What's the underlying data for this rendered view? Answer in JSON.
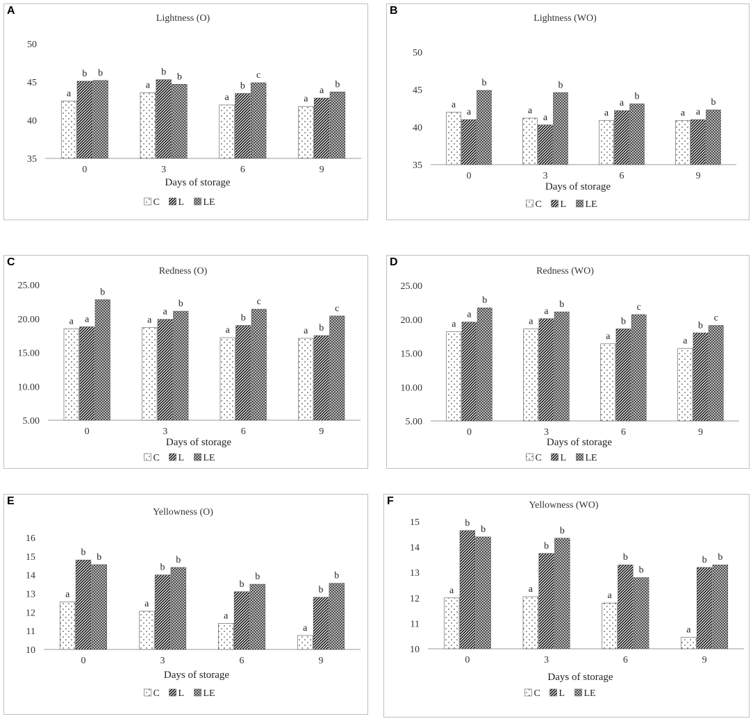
{
  "figure": {
    "legend_labels": [
      "C",
      "L",
      "LE"
    ]
  },
  "chart_data": [
    {
      "panel_label": "A",
      "type": "bar",
      "title": "Lightness (O)",
      "xlabel": "Days of storage",
      "ylabel": "",
      "categories": [
        "0",
        "3",
        "6",
        "9"
      ],
      "ylim": [
        35,
        50
      ],
      "yticks": [
        35,
        40,
        45,
        50
      ],
      "ytick_labels": [
        "35",
        "40",
        "45",
        "50"
      ],
      "series": [
        {
          "name": "C",
          "values": [
            42.5,
            43.6,
            42.0,
            41.8
          ],
          "letters": [
            "a",
            "a",
            "a",
            "a"
          ]
        },
        {
          "name": "L",
          "values": [
            45.1,
            45.3,
            43.5,
            42.9
          ],
          "letters": [
            "b",
            "b",
            "b",
            "a"
          ]
        },
        {
          "name": "LE",
          "values": [
            45.2,
            44.7,
            44.9,
            43.7
          ],
          "letters": [
            "b",
            "b",
            "c",
            "b"
          ]
        }
      ]
    },
    {
      "panel_label": "B",
      "type": "bar",
      "title": "Lightness (WO)",
      "xlabel": "Days of storage",
      "ylabel": "",
      "categories": [
        "0",
        "3",
        "6",
        "9"
      ],
      "ylim": [
        35,
        50
      ],
      "yticks": [
        35,
        40,
        45,
        50
      ],
      "ytick_labels": [
        "35",
        "40",
        "45",
        "50"
      ],
      "series": [
        {
          "name": "C",
          "values": [
            42.0,
            41.2,
            40.9,
            40.9
          ],
          "letters": [
            "a",
            "a",
            "a",
            "a"
          ]
        },
        {
          "name": "L",
          "values": [
            41.0,
            40.3,
            42.2,
            41.0
          ],
          "letters": [
            "a",
            "a",
            "a",
            "a"
          ]
        },
        {
          "name": "LE",
          "values": [
            44.9,
            44.6,
            43.1,
            42.3
          ],
          "letters": [
            "b",
            "b",
            "b",
            "b"
          ]
        }
      ]
    },
    {
      "panel_label": "C",
      "type": "bar",
      "title": "Redness (O)",
      "xlabel": "Days of storage",
      "ylabel": "",
      "categories": [
        "0",
        "3",
        "6",
        "9"
      ],
      "ylim": [
        5,
        25
      ],
      "yticks": [
        5,
        10,
        15,
        20,
        25
      ],
      "ytick_labels": [
        "5.00",
        "10.00",
        "15.00",
        "20.00",
        "25.00"
      ],
      "series": [
        {
          "name": "C",
          "values": [
            18.5,
            18.7,
            17.2,
            17.1
          ],
          "letters": [
            "a",
            "a",
            "a",
            "a"
          ]
        },
        {
          "name": "L",
          "values": [
            18.8,
            19.9,
            19.0,
            17.5
          ],
          "letters": [
            "a",
            "a",
            "b",
            "b"
          ]
        },
        {
          "name": "LE",
          "values": [
            22.8,
            21.1,
            21.4,
            20.4
          ],
          "letters": [
            "b",
            "b",
            "c",
            "c"
          ]
        }
      ]
    },
    {
      "panel_label": "D",
      "type": "bar",
      "title": "Redness (WO)",
      "xlabel": "Days of storage",
      "ylabel": "",
      "categories": [
        "0",
        "3",
        "6",
        "9"
      ],
      "ylim": [
        5,
        25
      ],
      "yticks": [
        5,
        10,
        15,
        20,
        25
      ],
      "ytick_labels": [
        "5.00",
        "10.00",
        "15.00",
        "20.00",
        "25.00"
      ],
      "series": [
        {
          "name": "C",
          "values": [
            18.2,
            18.6,
            16.4,
            15.7
          ],
          "letters": [
            "a",
            "a",
            "a",
            "a"
          ]
        },
        {
          "name": "L",
          "values": [
            19.6,
            20.1,
            18.6,
            18.0
          ],
          "letters": [
            "a",
            "a",
            "b",
            "b"
          ]
        },
        {
          "name": "LE",
          "values": [
            21.7,
            21.1,
            20.7,
            19.1
          ],
          "letters": [
            "b",
            "b",
            "c",
            "c"
          ]
        }
      ]
    },
    {
      "panel_label": "E",
      "type": "bar",
      "title": "Yellowness (O)",
      "xlabel": "Days of storage",
      "ylabel": "",
      "categories": [
        "0",
        "3",
        "6",
        "9"
      ],
      "ylim": [
        10,
        16
      ],
      "yticks": [
        10,
        11,
        12,
        13,
        14,
        15,
        16
      ],
      "ytick_labels": [
        "10",
        "11",
        "12",
        "13",
        "14",
        "15",
        "16"
      ],
      "series": [
        {
          "name": "C",
          "values": [
            12.55,
            12.05,
            11.4,
            10.75
          ],
          "letters": [
            "a",
            "a",
            "a",
            "a"
          ]
        },
        {
          "name": "L",
          "values": [
            14.8,
            14.0,
            13.1,
            12.8
          ],
          "letters": [
            "b",
            "b",
            "b",
            "b"
          ]
        },
        {
          "name": "LE",
          "values": [
            14.55,
            14.4,
            13.5,
            13.55
          ],
          "letters": [
            "b",
            "b",
            "b",
            "b"
          ]
        }
      ]
    },
    {
      "panel_label": "F",
      "type": "bar",
      "title": "Yellowness (WO)",
      "xlabel": "Days of storage",
      "ylabel": "",
      "categories": [
        "0",
        "3",
        "6",
        "9"
      ],
      "ylim": [
        10,
        15
      ],
      "yticks": [
        10,
        11,
        12,
        13,
        14,
        15
      ],
      "ytick_labels": [
        "10",
        "11",
        "12",
        "13",
        "14",
        "15"
      ],
      "series": [
        {
          "name": "C",
          "values": [
            12.0,
            12.05,
            11.8,
            10.45
          ],
          "letters": [
            "a",
            "a",
            "a",
            "a"
          ]
        },
        {
          "name": "L",
          "values": [
            14.65,
            13.75,
            13.3,
            13.2
          ],
          "letters": [
            "b",
            "b",
            "b",
            "b"
          ]
        },
        {
          "name": "LE",
          "values": [
            14.4,
            14.35,
            12.8,
            13.3
          ],
          "letters": [
            "b",
            "b",
            "b",
            "b"
          ]
        }
      ]
    }
  ]
}
